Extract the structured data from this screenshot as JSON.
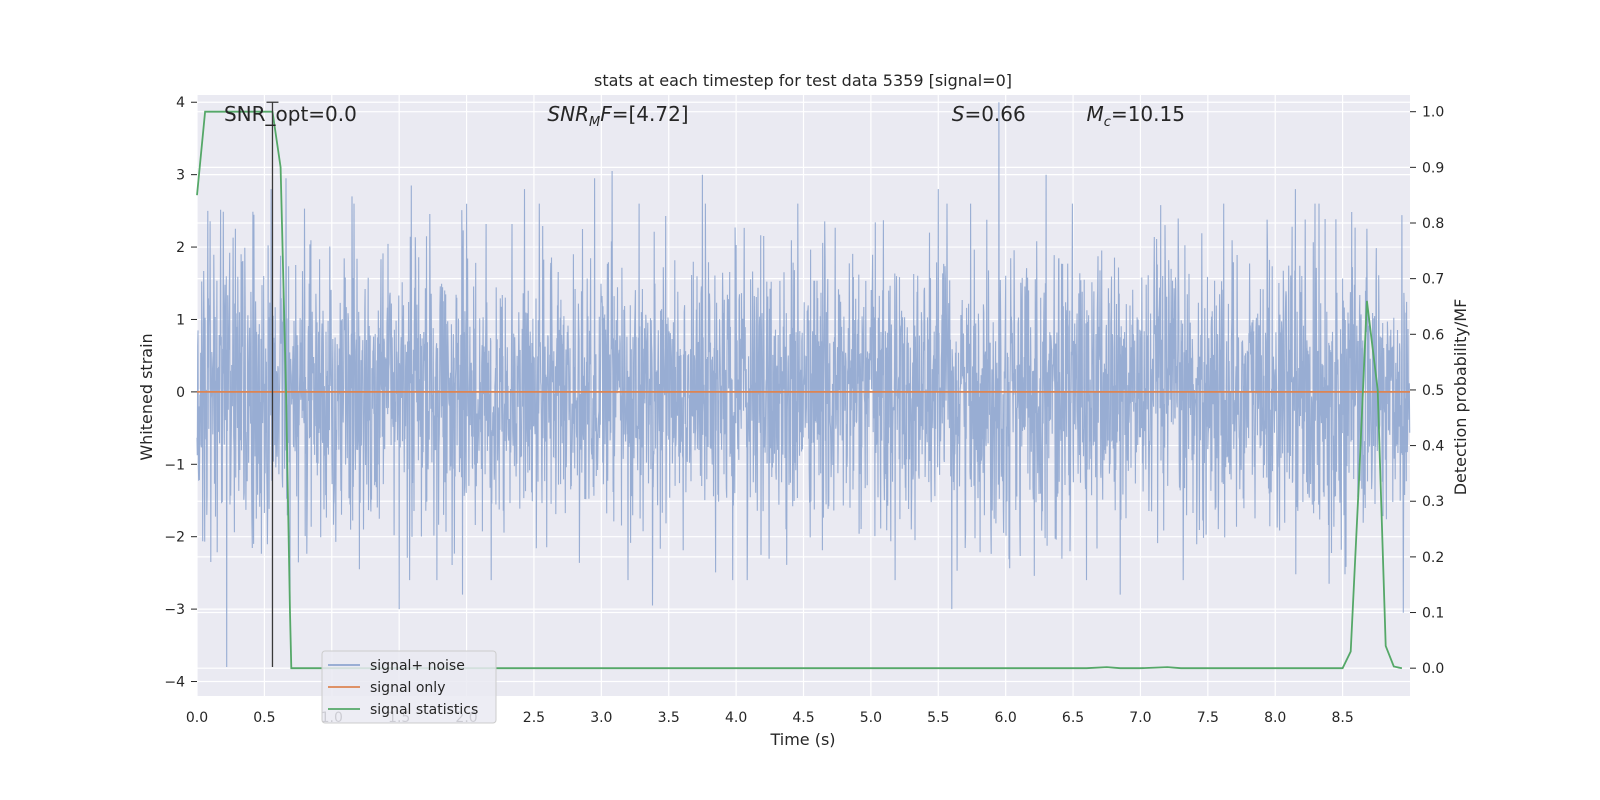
{
  "chart_data": {
    "type": "line",
    "title": "stats at each timestep for test data 5359 [signal=0]",
    "xlabel": "Time (s)",
    "ylabel": "Whitened strain",
    "y2label": "Detection probability/MF",
    "xlim": [
      0.0,
      9.0
    ],
    "ylim": [
      -4.2,
      4.1
    ],
    "y2lim": [
      -0.05,
      1.03
    ],
    "xticks": [
      "0.0",
      "0.5",
      "1.0",
      "1.5",
      "2.0",
      "2.5",
      "3.0",
      "3.5",
      "4.0",
      "4.5",
      "5.0",
      "5.5",
      "6.0",
      "6.5",
      "7.0",
      "7.5",
      "8.0",
      "8.5"
    ],
    "xtick_values": [
      0.0,
      0.5,
      1.0,
      1.5,
      2.0,
      2.5,
      3.0,
      3.5,
      4.0,
      4.5,
      5.0,
      5.5,
      6.0,
      6.5,
      7.0,
      7.5,
      8.0,
      8.5
    ],
    "yticks": [
      "4",
      "3",
      "2",
      "1",
      "0",
      "−1",
      "−2",
      "−3",
      "−4"
    ],
    "ytick_values": [
      4,
      3,
      2,
      1,
      0,
      -1,
      -2,
      -3,
      -4
    ],
    "y2ticks": [
      "1.0",
      "0.9",
      "0.8",
      "0.7",
      "0.6",
      "0.5",
      "0.4",
      "0.3",
      "0.2",
      "0.1",
      "0.0"
    ],
    "y2tick_values": [
      1.0,
      0.9,
      0.8,
      0.7,
      0.6,
      0.5,
      0.4,
      0.3,
      0.2,
      0.1,
      0.0
    ],
    "grid": true,
    "legend_position": "lower-left",
    "annotations": [
      {
        "id": "snr-opt",
        "text": "SNR_opt=0.0",
        "x": 0.2
      },
      {
        "id": "snr-mf",
        "text": "SNR_MF=[4.72]",
        "x": 2.6
      },
      {
        "id": "s-value",
        "text": "S=0.66",
        "x": 5.6
      },
      {
        "id": "mc-value",
        "text": "M_c=10.15",
        "x": 6.6
      }
    ],
    "marker_line": {
      "x": 0.56,
      "y_top": 4.0,
      "y_bottom": -3.8
    },
    "series": [
      {
        "name": "signal+ noise",
        "axis": "left",
        "color": "#8fa6cf",
        "kind": "noise",
        "t_start": 0.0,
        "t_end": 9.0,
        "sample_rate_hz": 400,
        "std": 0.95,
        "spikes": [
          {
            "x": 0.08,
            "y": 2.5
          },
          {
            "x": 0.22,
            "y": -3.8
          },
          {
            "x": 0.55,
            "y": 2.8
          },
          {
            "x": 0.66,
            "y": 2.95
          },
          {
            "x": 0.69,
            "y": -2.85
          },
          {
            "x": 1.15,
            "y": 2.7
          },
          {
            "x": 1.5,
            "y": -3.0
          },
          {
            "x": 1.59,
            "y": 2.85
          },
          {
            "x": 1.97,
            "y": -2.8
          },
          {
            "x": 2.43,
            "y": 2.8
          },
          {
            "x": 2.95,
            "y": 2.95
          },
          {
            "x": 3.08,
            "y": 3.05
          },
          {
            "x": 3.38,
            "y": -2.95
          },
          {
            "x": 3.75,
            "y": 3.0
          },
          {
            "x": 5.5,
            "y": 2.8
          },
          {
            "x": 5.6,
            "y": -3.0
          },
          {
            "x": 5.95,
            "y": 4.0
          },
          {
            "x": 6.3,
            "y": 3.0
          },
          {
            "x": 6.85,
            "y": -2.8
          },
          {
            "x": 8.15,
            "y": 2.8
          },
          {
            "x": 8.4,
            "y": -2.65
          },
          {
            "x": 8.95,
            "y": -3.05
          }
        ]
      },
      {
        "name": "signal only",
        "axis": "left",
        "color": "#dd8452",
        "x": [
          0.0,
          9.0
        ],
        "y": [
          0.0,
          0.0
        ]
      },
      {
        "name": "signal statistics",
        "axis": "right",
        "color": "#55a868",
        "x": [
          0.0,
          0.06,
          0.12,
          0.2,
          0.3,
          0.4,
          0.5,
          0.56,
          0.62,
          0.66,
          0.69,
          0.7,
          1.0,
          2.0,
          3.0,
          4.0,
          5.0,
          6.0,
          6.6,
          6.75,
          6.85,
          7.0,
          7.2,
          7.3,
          7.5,
          8.0,
          8.5,
          8.56,
          8.62,
          8.68,
          8.76,
          8.82,
          8.88,
          8.94
        ],
        "y": [
          0.85,
          1.0,
          1.0,
          1.0,
          1.0,
          1.0,
          1.0,
          1.0,
          0.9,
          0.5,
          0.1,
          0.0,
          0.0,
          0.0,
          0.0,
          0.0,
          0.0,
          0.0,
          0.0,
          0.002,
          0.0,
          0.0,
          0.002,
          0.0,
          0.0,
          0.0,
          0.0,
          0.03,
          0.33,
          0.66,
          0.5,
          0.04,
          0.003,
          0.0
        ]
      }
    ]
  }
}
